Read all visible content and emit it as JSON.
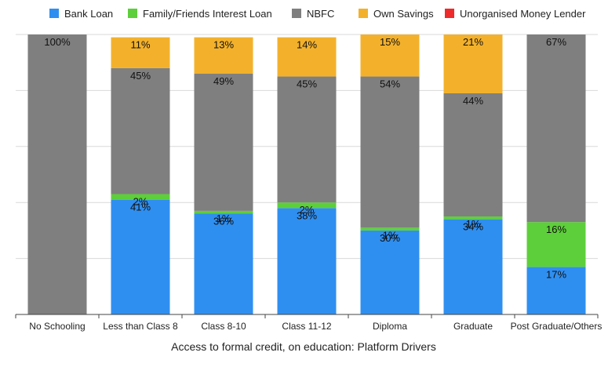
{
  "chart_data": {
    "type": "bar",
    "stacked": true,
    "categories": [
      "No Schooling",
      "Less than Class 8",
      "Class 8-10",
      "Class 11-12",
      "Diploma",
      "Graduate",
      "Post Graduate/Others"
    ],
    "series": [
      {
        "name": "Bank Loan",
        "color": "#2f8ff0",
        "values": [
          0,
          41,
          36,
          38,
          30,
          34,
          17
        ]
      },
      {
        "name": "Family/Friends Interest Loan",
        "color": "#5dcf3a",
        "values": [
          0,
          2,
          1,
          2,
          1,
          1,
          16
        ]
      },
      {
        "name": "NBFC",
        "color": "#7f7f7f",
        "values": [
          100,
          45,
          49,
          45,
          54,
          44,
          67
        ]
      },
      {
        "name": "Own Savings",
        "color": "#f3b12b",
        "values": [
          0,
          11,
          13,
          14,
          15,
          21,
          0
        ]
      },
      {
        "name": "Unorganised Money Lender",
        "color": "#ee2a2a",
        "values": [
          0,
          0,
          0,
          0,
          0,
          0,
          0
        ]
      }
    ],
    "value_labels": [
      [
        "",
        "",
        "100%",
        "",
        ""
      ],
      [
        "41%",
        "2%",
        "45%",
        "11%",
        ""
      ],
      [
        "36%",
        "1%",
        "49%",
        "13%",
        ""
      ],
      [
        "38%",
        "2%",
        "45%",
        "14%",
        ""
      ],
      [
        "30%",
        "1%",
        "54%",
        "15%",
        ""
      ],
      [
        "34%",
        "1%",
        "44%",
        "21%",
        ""
      ],
      [
        "17%",
        "16%",
        "67%",
        "",
        ""
      ]
    ],
    "xlabel": "Access to formal credit, on education: Platform Drivers",
    "ylabel": "",
    "ylim": [
      0,
      100
    ],
    "grid": true,
    "legend_position": "top"
  }
}
